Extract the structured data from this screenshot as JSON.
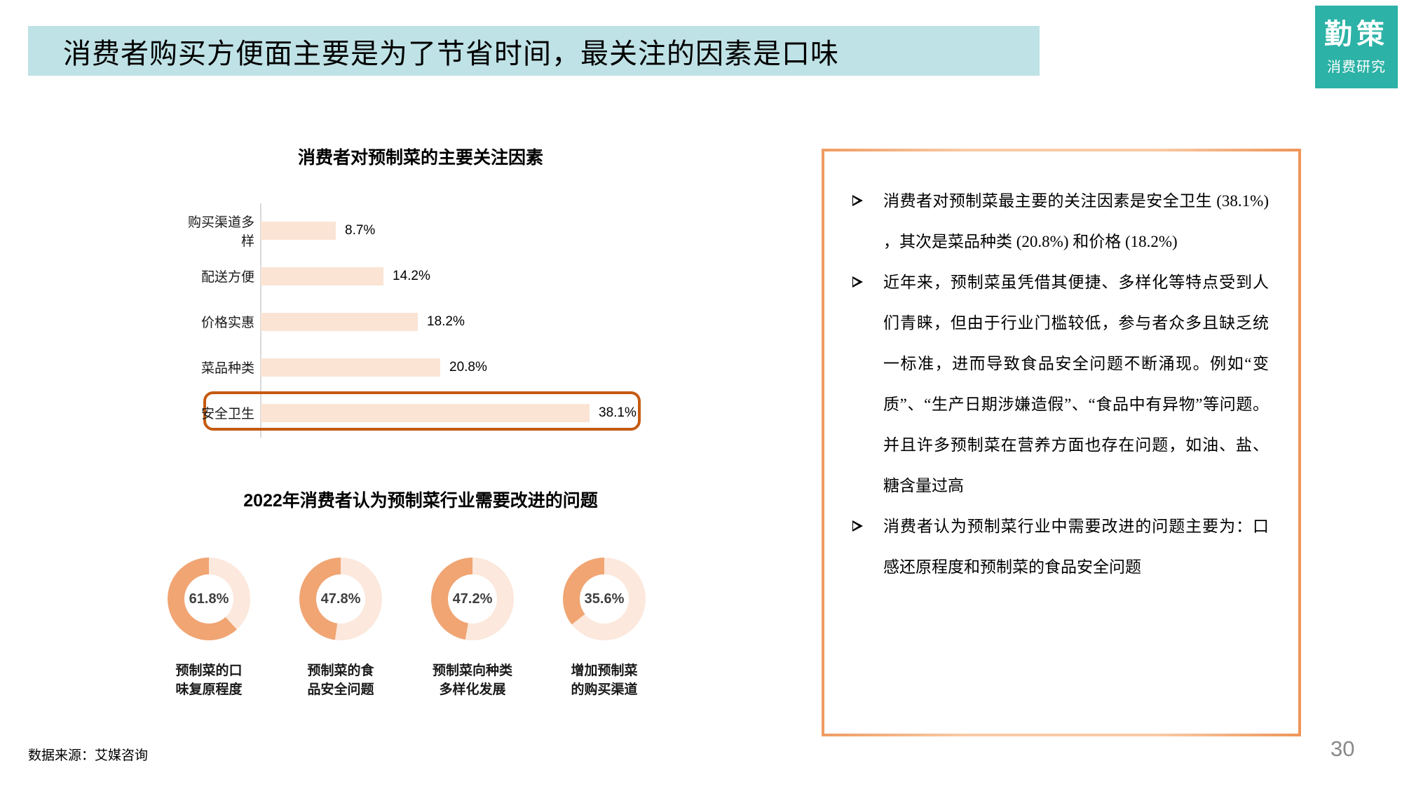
{
  "header": {
    "title": "消费者购买方便面主要是为了节省时间，最关注的因素是口味",
    "title_bar_color": "#bfe2e6",
    "logo": {
      "line1": "勤策",
      "line2": "消费研究",
      "color": "#2cb2a6"
    }
  },
  "chart_data": [
    {
      "type": "bar",
      "orientation": "horizontal",
      "title": "消费者对预制菜的主要关注因素",
      "categories": [
        "购买渠道多样",
        "配送方便",
        "价格实惠",
        "菜品种类",
        "安全卫生"
      ],
      "values": [
        8.7,
        14.2,
        18.2,
        20.8,
        38.1
      ],
      "value_labels": [
        "8.7%",
        "14.2%",
        "18.2%",
        "20.8%",
        "38.1%"
      ],
      "xlim": [
        0,
        40
      ],
      "grid": false,
      "bar_color": "#fbe4d4",
      "highlight_index": 4,
      "highlight_category": "安全卫生",
      "highlight_box_color": "#c55a11"
    },
    {
      "type": "pie",
      "subtype": "donut",
      "title": "2022年消费者认为预制菜行业需要改进的问题",
      "filled_color": "#f0a573",
      "rest_color": "#fce8dc",
      "items": [
        {
          "label": "预制菜的口味复原程度",
          "label_lines": [
            "预制菜的口",
            "味复原程度"
          ],
          "value": 61.8,
          "value_label": "61.8%"
        },
        {
          "label": "预制菜的食品安全问题",
          "label_lines": [
            "预制菜的食",
            "品安全问题"
          ],
          "value": 47.8,
          "value_label": "47.8%"
        },
        {
          "label": "预制菜向种类多样化发展",
          "label_lines": [
            "预制菜向种类",
            "多样化发展"
          ],
          "value": 47.2,
          "value_label": "47.2%"
        },
        {
          "label": "增加预制菜的购买渠道",
          "label_lines": [
            "增加预制菜",
            "的购买渠道"
          ],
          "value": 35.6,
          "value_label": "35.6%"
        }
      ]
    }
  ],
  "panel": {
    "border_color": "#f2a470",
    "bullets": [
      {
        "text": "消费者对预制菜最主要的关注因素是安全卫生 (38.1%) ，其次是菜品种类 (20.8%) 和价格 (18.2%)"
      },
      {
        "text": "近年来，预制菜虽凭借其便捷、多样化等特点受到人们青睐，但由于行业门槛较低，参与者众多且缺乏统一标准，进而导致食品安全问题不断涌现。例如“变质”、“生产日期涉嫌造假”、“食品中有异物”等问题。并且许多预制菜在营养方面也存在问题，如油、盐、糖含量过高"
      },
      {
        "text": "消费者认为预制菜行业中需要改进的问题主要为：口感还原程度和预制菜的食品安全问题"
      }
    ]
  },
  "footer": {
    "source": "数据来源：艾媒咨询",
    "page_number": "30"
  }
}
